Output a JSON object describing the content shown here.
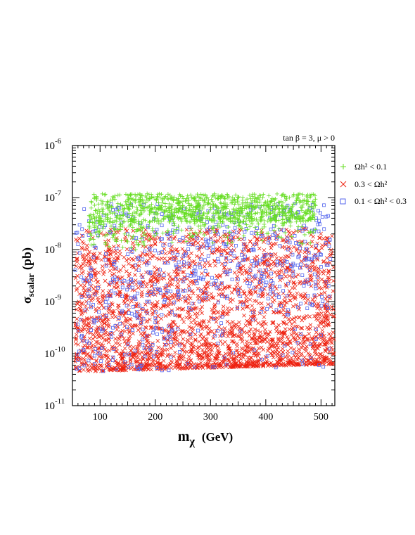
{
  "chart_data": {
    "type": "scatter",
    "title": "tan β = 3, μ > 0",
    "xlabel": "m",
    "xlabel_sub": "χ",
    "xlabel_unit": "(GeV)",
    "ylabel": "σ",
    "ylabel_sub": "scalar",
    "ylabel_unit": "(pb)",
    "xlim": [
      50,
      525
    ],
    "ylim_log10": [
      -11,
      -6
    ],
    "y_scale": "log",
    "x_ticks": [
      "100",
      "200",
      "300",
      "400",
      "500"
    ],
    "x_tick_values": [
      100,
      200,
      300,
      400,
      500
    ],
    "y_ticks": [
      {
        "base": "10",
        "exp": "-6",
        "log": -6
      },
      {
        "base": "10",
        "exp": "-7",
        "log": -7
      },
      {
        "base": "10",
        "exp": "-8",
        "log": -8
      },
      {
        "base": "10",
        "exp": "-9",
        "log": -9
      },
      {
        "base": "10",
        "exp": "-10",
        "log": -10
      },
      {
        "base": "10",
        "exp": "-11",
        "log": -11
      }
    ],
    "legend_placement": "right",
    "legend": [
      {
        "key": "green",
        "label": "Ωh² < 0.1",
        "marker": "plus",
        "color": "#66dd22"
      },
      {
        "key": "red",
        "label": "0.3 < Ωh²",
        "marker": "cross",
        "color": "#ee2211"
      },
      {
        "key": "blue",
        "label": "0.1 < Ωh² < 0.3",
        "marker": "square",
        "color": "#5566ee"
      }
    ],
    "series": [
      {
        "key": "green",
        "marker": "plus",
        "color": "#66dd22",
        "region": {
          "x": [
            80,
            490
          ],
          "log10_y": [
            -8.0,
            -6.85
          ]
        },
        "points_log10": [
          [
            85,
            -7.1
          ],
          [
            95,
            -7.3
          ],
          [
            105,
            -7.6
          ],
          [
            115,
            -7.2
          ],
          [
            125,
            -7.0
          ],
          [
            135,
            -7.4
          ],
          [
            145,
            -7.7
          ],
          [
            155,
            -7.1
          ],
          [
            165,
            -7.3
          ],
          [
            175,
            -7.5
          ],
          [
            185,
            -7.2
          ],
          [
            195,
            -7.6
          ],
          [
            205,
            -7.0
          ],
          [
            215,
            -7.4
          ],
          [
            225,
            -7.2
          ],
          [
            235,
            -7.5
          ],
          [
            245,
            -7.1
          ],
          [
            255,
            -7.3
          ],
          [
            265,
            -7.6
          ],
          [
            275,
            -7.2
          ],
          [
            285,
            -7.4
          ],
          [
            295,
            -7.1
          ],
          [
            305,
            -7.3
          ],
          [
            315,
            -7.5
          ],
          [
            325,
            -7.2
          ],
          [
            335,
            -7.4
          ],
          [
            345,
            -7.1
          ],
          [
            355,
            -7.3
          ],
          [
            365,
            -7.2
          ],
          [
            375,
            -7.4
          ],
          [
            385,
            -7.1
          ],
          [
            395,
            -7.3
          ],
          [
            405,
            -7.2
          ],
          [
            415,
            -7.4
          ],
          [
            425,
            -7.1
          ],
          [
            435,
            -7.3
          ],
          [
            445,
            -7.2
          ],
          [
            455,
            -7.3
          ],
          [
            465,
            -7.25
          ],
          [
            475,
            -7.3
          ],
          [
            110,
            -7.9
          ],
          [
            130,
            -7.8
          ],
          [
            150,
            -7.85
          ],
          [
            170,
            -7.9
          ],
          [
            190,
            -7.8
          ],
          [
            120,
            -7.55
          ],
          [
            140,
            -7.15
          ],
          [
            160,
            -7.45
          ]
        ]
      },
      {
        "key": "red",
        "marker": "cross",
        "color": "#ee2211",
        "region": {
          "x": [
            55,
            525
          ],
          "log10_y": [
            -10.35,
            -7.6
          ]
        },
        "points_log10": [
          [
            60,
            -9.5
          ],
          [
            65,
            -10.1
          ],
          [
            75,
            -9.0
          ],
          [
            85,
            -10.2
          ],
          [
            95,
            -8.8
          ],
          [
            105,
            -9.7
          ],
          [
            115,
            -8.2
          ],
          [
            125,
            -10.3
          ],
          [
            135,
            -9.2
          ],
          [
            145,
            -9.9
          ],
          [
            155,
            -8.6
          ],
          [
            165,
            -10.0
          ],
          [
            175,
            -9.4
          ],
          [
            185,
            -8.1
          ],
          [
            195,
            -9.8
          ],
          [
            205,
            -10.1
          ],
          [
            215,
            -9.1
          ],
          [
            225,
            -8.7
          ],
          [
            235,
            -9.6
          ],
          [
            245,
            -10.2
          ],
          [
            255,
            -9.0
          ],
          [
            265,
            -9.8
          ],
          [
            275,
            -9.3
          ],
          [
            285,
            -10.1
          ],
          [
            295,
            -8.9
          ],
          [
            305,
            -9.7
          ],
          [
            315,
            -10.0
          ],
          [
            325,
            -9.2
          ],
          [
            335,
            -9.9
          ],
          [
            345,
            -9.5
          ],
          [
            355,
            -10.2
          ],
          [
            365,
            -9.1
          ],
          [
            375,
            -9.7
          ],
          [
            385,
            -10.0
          ],
          [
            395,
            -9.4
          ],
          [
            405,
            -9.9
          ],
          [
            415,
            -9.2
          ],
          [
            425,
            -10.1
          ],
          [
            435,
            -9.6
          ],
          [
            445,
            -9.8
          ],
          [
            455,
            -9.3
          ],
          [
            465,
            -10.0
          ],
          [
            475,
            -9.5
          ],
          [
            485,
            -9.9
          ],
          [
            495,
            -9.7
          ],
          [
            505,
            -9.4
          ],
          [
            515,
            -10.1
          ],
          [
            520,
            -9.8
          ]
        ]
      },
      {
        "key": "blue",
        "marker": "square",
        "color": "#5566ee",
        "region": {
          "x": [
            55,
            520
          ],
          "log10_y": [
            -10.35,
            -7.1
          ]
        },
        "points_log10": [
          [
            60,
            -7.9
          ],
          [
            70,
            -8.6
          ],
          [
            80,
            -9.8
          ],
          [
            90,
            -10.2
          ],
          [
            100,
            -9.3
          ],
          [
            110,
            -8.2
          ],
          [
            120,
            -9.6
          ],
          [
            130,
            -10.3
          ],
          [
            140,
            -8.9
          ],
          [
            150,
            -7.7
          ],
          [
            160,
            -9.1
          ],
          [
            170,
            -8.4
          ],
          [
            180,
            -9.9
          ],
          [
            190,
            -8.0
          ],
          [
            200,
            -9.4
          ],
          [
            210,
            -7.8
          ],
          [
            220,
            -8.7
          ],
          [
            230,
            -9.2
          ],
          [
            240,
            -8.1
          ],
          [
            250,
            -8.8
          ],
          [
            260,
            -7.9
          ],
          [
            270,
            -8.5
          ],
          [
            280,
            -9.0
          ],
          [
            290,
            -8.2
          ],
          [
            300,
            -7.8
          ],
          [
            310,
            -8.6
          ],
          [
            320,
            -8.1
          ],
          [
            330,
            -8.9
          ],
          [
            340,
            -7.7
          ],
          [
            350,
            -8.3
          ],
          [
            360,
            -8.0
          ],
          [
            370,
            -8.7
          ],
          [
            380,
            -7.9
          ],
          [
            390,
            -8.4
          ],
          [
            400,
            -8.1
          ],
          [
            410,
            -8.6
          ],
          [
            420,
            -7.8
          ],
          [
            430,
            -8.3
          ],
          [
            440,
            -8.0
          ],
          [
            450,
            -8.5
          ],
          [
            460,
            -7.9
          ],
          [
            470,
            -8.2
          ],
          [
            480,
            -8.4
          ],
          [
            490,
            -8.7
          ],
          [
            500,
            -8.1
          ],
          [
            510,
            -8.3
          ],
          [
            515,
            -8.9
          ],
          [
            100,
            -10.0
          ]
        ]
      }
    ]
  }
}
